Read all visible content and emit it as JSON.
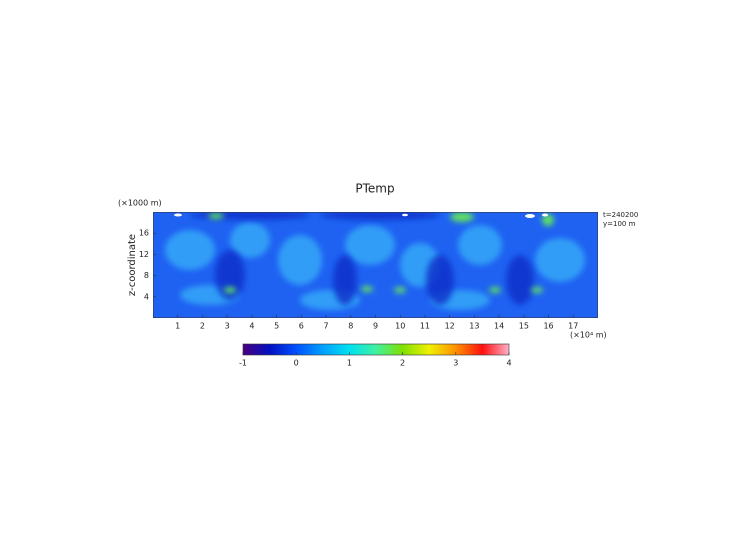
{
  "chart_data": {
    "type": "heatmap",
    "title": "PTemp",
    "y_unit_label": "(×1000 m)",
    "ylabel": "z-coordinate",
    "x_unit_label": "(×10⁴ m)",
    "annotations": [
      "t=240200",
      "y=100 m"
    ],
    "xlim": [
      0,
      18
    ],
    "xticks": [
      1,
      2,
      3,
      4,
      5,
      6,
      7,
      8,
      9,
      10,
      11,
      12,
      13,
      14,
      15,
      16,
      17
    ],
    "ylim": [
      0,
      20
    ],
    "yticks": [
      4,
      8,
      12,
      16
    ],
    "colorbar": {
      "lim": [
        -1,
        4
      ],
      "ticks": [
        -1,
        0,
        1,
        2,
        3,
        4
      ],
      "colormap": [
        "#4a0080",
        "#0010c0",
        "#0050ff",
        "#00a0ff",
        "#00e0f0",
        "#40f0a0",
        "#80e000",
        "#f0f000",
        "#ff9000",
        "#ff1010",
        "#ffb0c8"
      ]
    }
  }
}
